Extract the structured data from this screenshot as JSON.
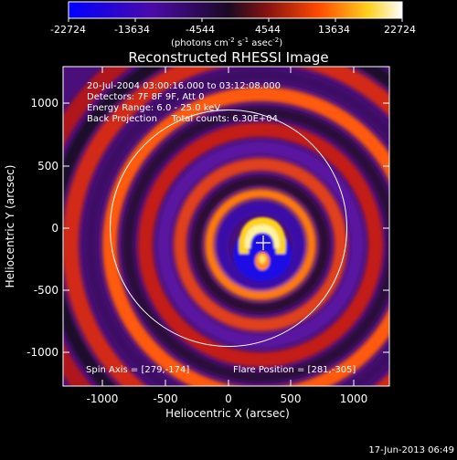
{
  "colorbar": {
    "ticks": [
      "-22724",
      "-13634",
      "-4544",
      "4544",
      "13634",
      "22724"
    ],
    "units_main": "(photons cm",
    "units_sup1": "-2",
    "units_mid1": " s",
    "units_sup2": "-1",
    "units_mid2": " asec",
    "units_sup3": "-2",
    "units_end": ")",
    "colors": [
      "#0000ff",
      "#4b0aa8",
      "#1a0a22",
      "#8a1410",
      "#ff4a00",
      "#ffd21e",
      "#ffffff"
    ]
  },
  "plot": {
    "title": "Reconstructed RHESSI Image",
    "info_lines": [
      "20-Jul-2004 03:00:16.000 to 03:12:08.000",
      "Detectors: 7F 8F 9F, Att 0",
      "Energy Range: 6.0 - 25.0 keV",
      "Back Projection     Total counts: 6.30E+04"
    ],
    "spin_axis": "Spin Axis = [279,-174]",
    "flare_position": "Flare Position = [281,-305]",
    "xlabel": "Heliocentric X (arcsec)",
    "ylabel": "Heliocentric Y (arcsec)",
    "xticks": [
      "-1000",
      "-500",
      "0",
      "500",
      "1000"
    ],
    "yticks": [
      "1000",
      "500",
      "0",
      "-500",
      "-1000"
    ],
    "xlim": [
      -1250,
      1300
    ],
    "ylim": [
      -1250,
      1300
    ],
    "limb_radius_arcsec": 945
  },
  "footer": {
    "timestamp": "17-Jun-2013 06:49"
  }
}
